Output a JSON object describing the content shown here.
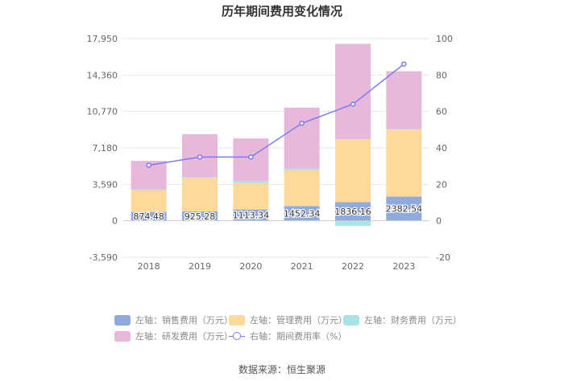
{
  "chart_data": {
    "type": "bar",
    "title": "历年期间费用变化情况",
    "categories": [
      "2018",
      "2019",
      "2020",
      "2021",
      "2022",
      "2023"
    ],
    "left_axis": {
      "min": -3590,
      "max": 17950,
      "ticks": [
        -3590,
        0,
        3590,
        7180,
        10770,
        14360,
        17950
      ],
      "tick_labels": [
        "-3,590",
        "0",
        "3,590",
        "7,180",
        "10,770",
        "14,360",
        "17,950"
      ]
    },
    "right_axis": {
      "min": -20,
      "max": 100,
      "ticks": [
        -20,
        0,
        20,
        40,
        60,
        80,
        100
      ],
      "tick_labels": [
        "-20",
        "0",
        "20",
        "40",
        "60",
        "80",
        "100"
      ]
    },
    "series": [
      {
        "name": "左轴：销售费用（万元）",
        "axis": "left",
        "kind": "bar",
        "color": "#8faadc",
        "values": [
          874.48,
          925.28,
          1113.34,
          1452.34,
          1836.16,
          2382.54
        ],
        "labels": [
          "874.48",
          "925.28",
          "1113.34",
          "1452.34",
          "1836.16",
          "2382.54"
        ]
      },
      {
        "name": "左轴：管理费用（万元）",
        "axis": "left",
        "kind": "bar",
        "color": "#ffd99a",
        "values": [
          2150,
          3300,
          2600,
          3550,
          6200,
          6600
        ]
      },
      {
        "name": "左轴：财务费用（万元）",
        "axis": "left",
        "kind": "bar",
        "color": "#a9e3e3",
        "values": [
          80,
          100,
          200,
          150,
          -500,
          50
        ]
      },
      {
        "name": "左轴：研发费用（万元）",
        "axis": "left",
        "kind": "bar",
        "color": "#e8b8da",
        "values": [
          2800,
          4200,
          4200,
          6000,
          9400,
          5700
        ]
      },
      {
        "name": "右轴：期间费用率（%）",
        "axis": "right",
        "kind": "line",
        "color": "#7b7cf0",
        "values": [
          30.5,
          35.0,
          35.0,
          53.5,
          64.0,
          86.0
        ]
      }
    ]
  },
  "source": "数据来源：恒生聚源"
}
